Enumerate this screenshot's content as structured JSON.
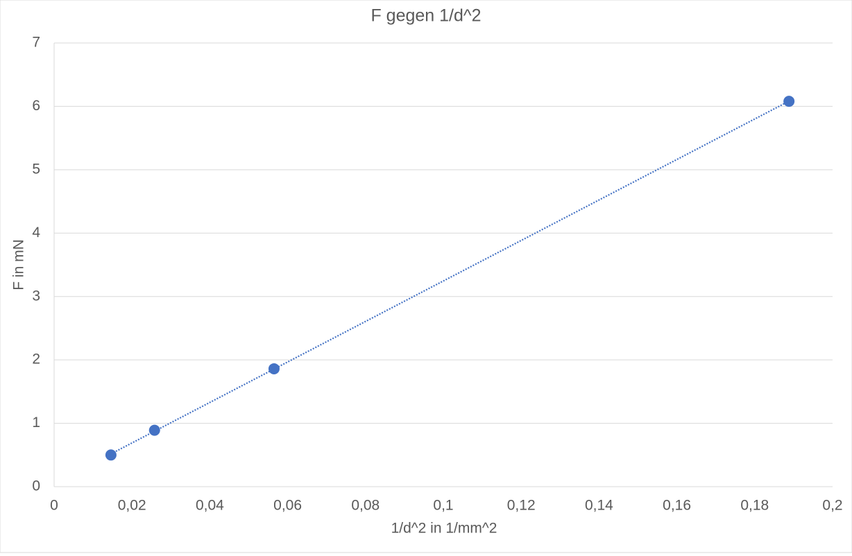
{
  "chart_data": {
    "type": "scatter",
    "title": "F gegen 1/d^2",
    "x_label": "1/d^2 in 1/mm^2",
    "y_label": "F in mN",
    "series": [
      {
        "color": "#4472c4",
        "x": [
          0.0146,
          0.0258,
          0.0565,
          0.1888
        ],
        "values": [
          0.5,
          0.89,
          1.86,
          6.08
        ]
      }
    ],
    "trendline": "linear",
    "xlim": [
      0,
      0.2
    ],
    "xticks": [
      0,
      {
        "value": 0.02,
        "label": "0,02"
      },
      {
        "value": 0.04,
        "label": "0,04"
      },
      {
        "value": 0.06,
        "label": "0,06"
      },
      {
        "value": 0.08,
        "label": "0,08"
      },
      {
        "value": 0.1,
        "label": "0,1"
      },
      {
        "value": 0.12,
        "label": "0,12"
      },
      {
        "value": 0.14,
        "label": "0,14"
      },
      {
        "value": 0.16,
        "label": "0,16"
      },
      {
        "value": 0.18,
        "label": "0,18"
      },
      {
        "value": 0.2,
        "label": "0,2"
      }
    ],
    "ylim": [
      0,
      7
    ],
    "yticks": [
      0,
      1,
      2,
      3,
      4,
      5,
      6,
      7
    ],
    "grid": true
  }
}
